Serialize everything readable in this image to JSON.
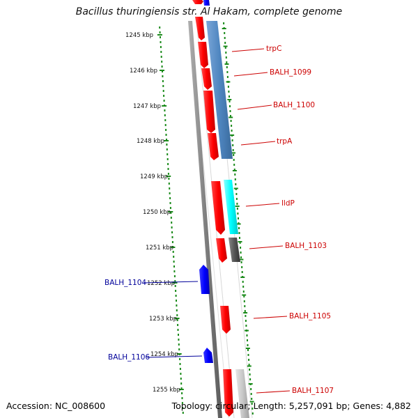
{
  "title": "Bacillus thuringiensis str. Al Hakam, complete genome",
  "footer": {
    "accession": "Accession: NC_008600",
    "summary": "Topology: circular; Length: 5,257,091 bp; Genes: 4,882"
  },
  "colors": {
    "forward_cds": "#ff0000",
    "reverse_cds": "#0000ff",
    "blast_hit_blue": "#4f86c0",
    "blast_hit_cyan": "#00ffff",
    "blast_hit_gray": "#555555",
    "blast_hit_light": "#c8c8c8",
    "dotted_track": "#1a8a1a",
    "backbone": "#888888",
    "forward_label": "#cc0000",
    "reverse_label": "#00009a"
  },
  "ticks": [
    {
      "label": "1245 kbp"
    },
    {
      "label": "1246 kbp"
    },
    {
      "label": "1247 kbp"
    },
    {
      "label": "1248 kbp"
    },
    {
      "label": "1249 kbp"
    },
    {
      "label": "1250 kbp"
    },
    {
      "label": "1251 kbp"
    },
    {
      "label": "1252 kbp"
    },
    {
      "label": "1253 kbp"
    },
    {
      "label": "1254 kbp"
    },
    {
      "label": "1255 kbp"
    }
  ],
  "gene_labels": {
    "trpC": "trpC",
    "BALH_1099": "BALH_1099",
    "BALH_1100": "BALH_1100",
    "trpA": "trpA",
    "lldP": "lldP",
    "BALH_1103": "BALH_1103",
    "BALH_1104": "BALH_1104",
    "BALH_1105": "BALH_1105",
    "BALH_1106": "BALH_1106",
    "BALH_1107": "BALH_1107"
  }
}
